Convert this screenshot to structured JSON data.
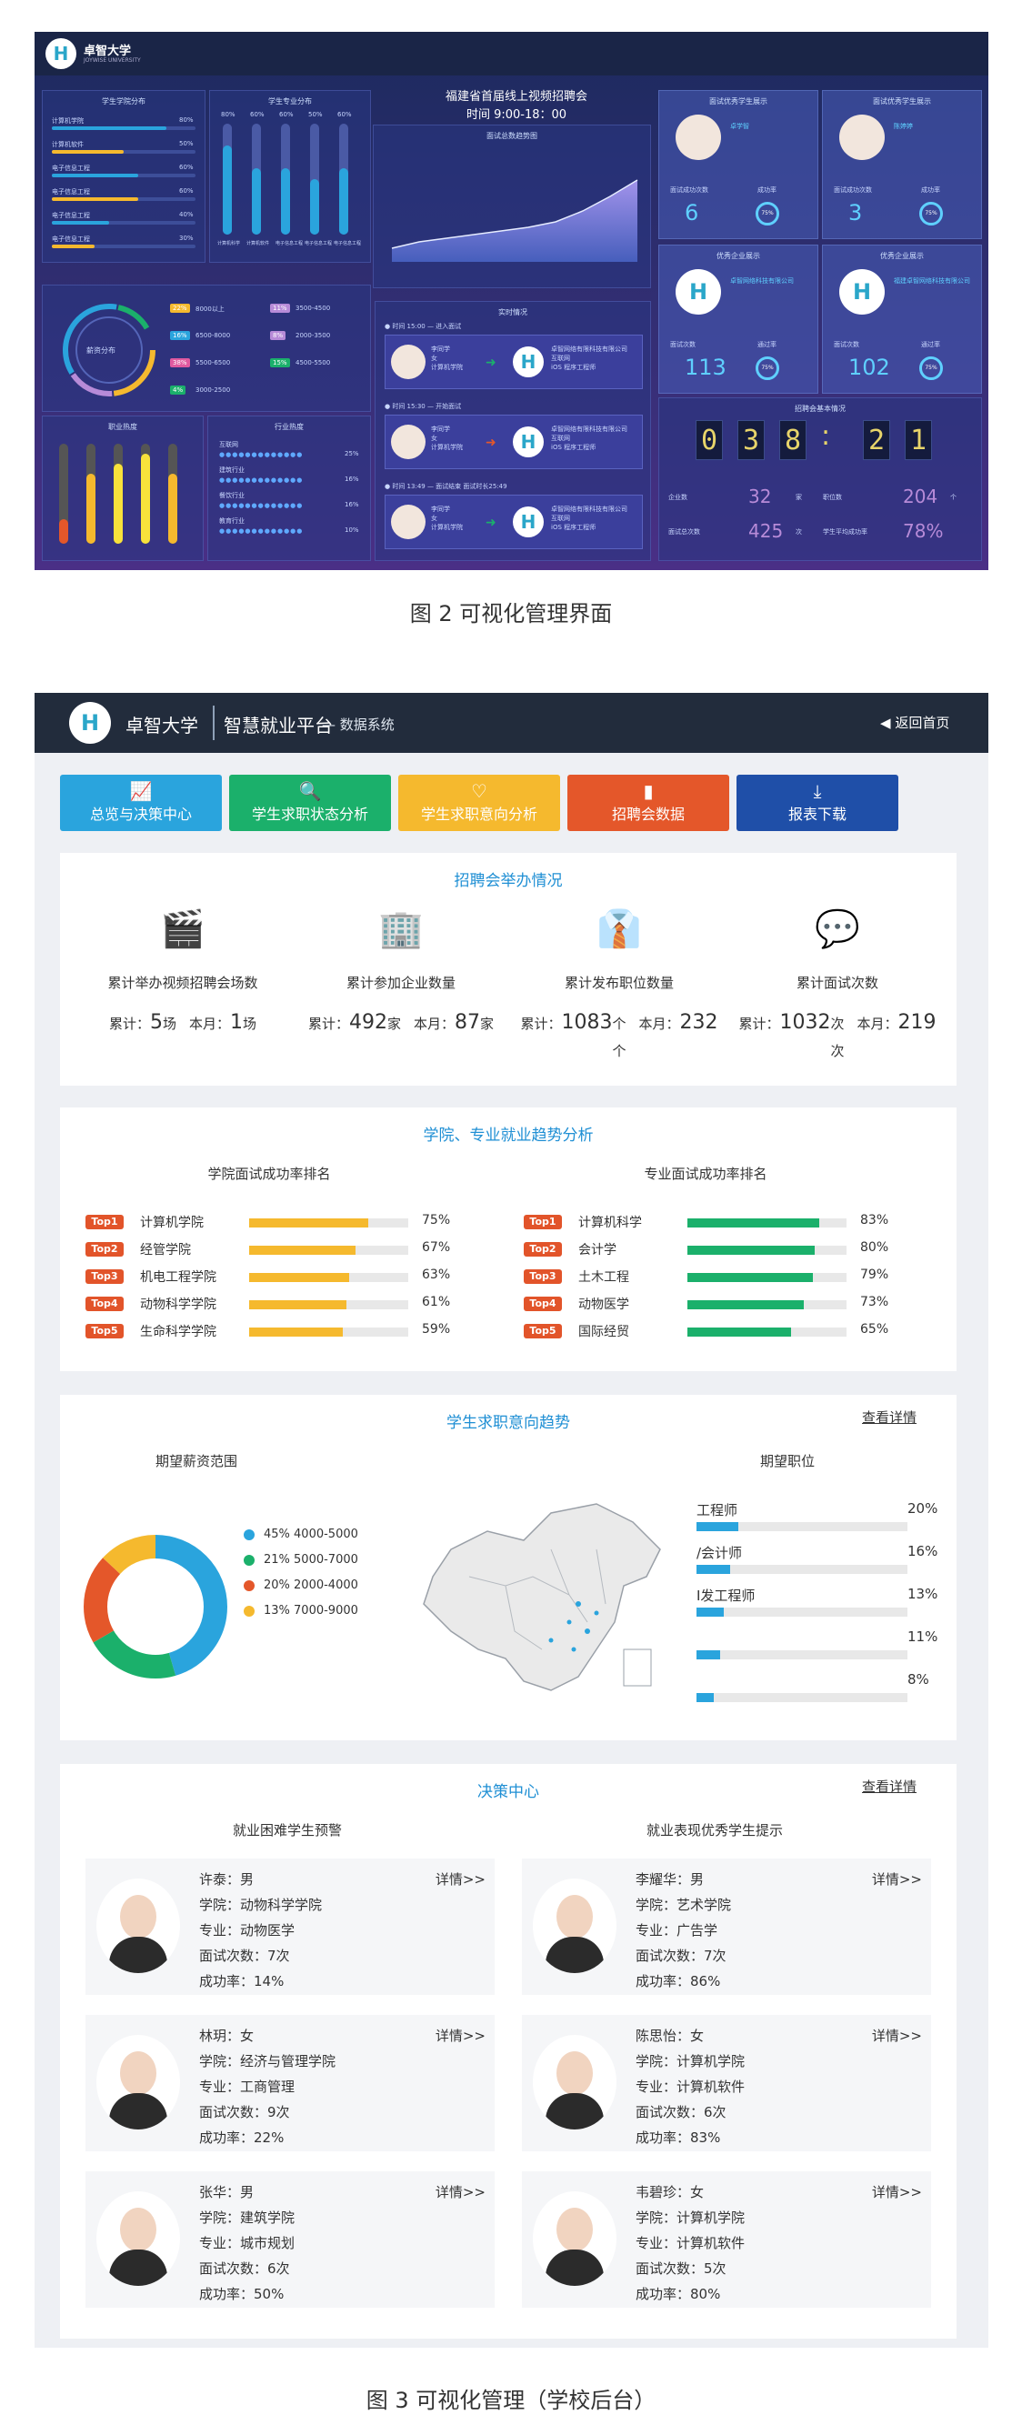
{
  "fig2": {
    "logo_text": "卓智大学",
    "logo_sub": "JOYWISE UNIVERSITY",
    "center_title": "福建省首届线上视频招聘会",
    "center_time": "时间 9:00-18：00",
    "panel_a_title": "学生学院分布",
    "panel_b_title": "学生专业分布",
    "panel_c_title": "面试总数趋势图",
    "panel_d_title": "职业热度",
    "panel_e_title": "行业热度",
    "panel_f_title": "实时情况",
    "panel_g_title": "招聘会基本情况",
    "hbars": [
      {
        "label": "计算机学院",
        "value": 80
      },
      {
        "label": "计算机软件",
        "value": 50
      },
      {
        "label": "电子信息工程",
        "value": 60
      },
      {
        "label": "电子信息工程",
        "value": 60
      },
      {
        "label": "电子信息工程",
        "value": 40
      },
      {
        "label": "电子信息工程",
        "value": 30
      }
    ],
    "vbars": [
      {
        "label": "计算机科学",
        "value": 80
      },
      {
        "label": "计算机软件",
        "value": 60
      },
      {
        "label": "电子信息工程",
        "value": 60
      },
      {
        "label": "电子信息工程",
        "value": 50
      },
      {
        "label": "电子信息工程",
        "value": 60
      }
    ],
    "donut_label": "薪资分布",
    "salary": [
      {
        "pct": "22%",
        "range": "8000以上"
      },
      {
        "pct": "11%",
        "range": "3500-4500"
      },
      {
        "pct": "16%",
        "range": "6500-8000"
      },
      {
        "pct": "8%",
        "range": "2000-3500"
      },
      {
        "pct": "38%",
        "range": "5500-6500"
      },
      {
        "pct": "15%",
        "range": "4500-5500"
      },
      {
        "pct": "4%",
        "range": "3000-2500"
      }
    ],
    "job_bars": [
      25,
      70,
      80,
      90,
      70
    ],
    "industries": [
      {
        "name": "互联网",
        "pct": "25%"
      },
      {
        "name": "建筑行业",
        "pct": "16%"
      },
      {
        "name": "餐饮行业",
        "pct": "16%"
      },
      {
        "name": "教育行业",
        "pct": "10%"
      }
    ],
    "realtime": [
      {
        "time": "● 时间 15:00 — 进入面试",
        "person": "李同学\n女\n计算机学院",
        "company": "卓智网络有限科技有限公司\n互联网\niOS 程序工程师"
      },
      {
        "time": "● 时间 15:30 — 开始面试",
        "person": "李同学\n女\n计算机学院",
        "company": "卓智网络有限科技有限公司\n互联网\niOS 程序工程师"
      },
      {
        "time": "● 时间 13:49 — 面试结束 面试时长25:49",
        "person": "李同学\n女\n计算机学院",
        "company": "卓智网络有限科技有限公司\n互联网\niOS 程序工程师"
      }
    ],
    "card_titles": [
      "面试优秀学生展示",
      "面试优秀学生展示",
      "优秀企业展示",
      "优秀企业展示"
    ],
    "card_stats": [
      {
        "a_label": "面试成功次数",
        "a_val": "6",
        "b_label": "成功率",
        "b_val": "75%"
      },
      {
        "a_label": "面试成功次数",
        "a_val": "3",
        "b_label": "成功率",
        "b_val": "75%"
      },
      {
        "a_label": "面试次数",
        "a_val": "113",
        "b_label": "通过率",
        "b_val": "75%"
      },
      {
        "a_label": "面试次数",
        "a_val": "102",
        "b_label": "通过率",
        "b_val": "75%"
      }
    ],
    "card_names": [
      "卓学智",
      "陈婷婷",
      "卓智网络科技有限公司",
      "福建卓智网络科技有限公司"
    ],
    "clock": [
      "0",
      "3",
      "8",
      ":",
      "2",
      "1"
    ],
    "basic": [
      {
        "label": "企业数",
        "value": "32",
        "unit": "家"
      },
      {
        "label": "职位数",
        "value": "204",
        "unit": "个"
      },
      {
        "label": "面试总次数",
        "value": "425",
        "unit": "次"
      },
      {
        "label": "学生平均成功率",
        "value": "78%",
        "unit": ""
      }
    ],
    "caption": "图 2  可视化管理界面"
  },
  "fig3": {
    "header": {
      "school": "卓智大学",
      "platform": "智慧就业平台",
      "sub": "— 数据系统",
      "back": "返回首页"
    },
    "tabs": [
      {
        "label": "总览与决策中心",
        "icon": "📈",
        "color": "#2aa4dd"
      },
      {
        "label": "学生求职状态分析",
        "icon": "🔍",
        "color": "#1bb06b"
      },
      {
        "label": "学生求职意向分析",
        "icon": "♡",
        "color": "#f5b92e"
      },
      {
        "label": "招聘会数据",
        "icon": "▮",
        "color": "#e4572a"
      },
      {
        "label": "报表下载",
        "icon": "⤓",
        "color": "#1f4fa8"
      }
    ],
    "fair": {
      "title": "招聘会举办情况",
      "items": [
        {
          "label": "累计举办视频招聘会场数",
          "total_pre": "累计：",
          "total": "5",
          "total_unit": "场",
          "month_pre": "本月：",
          "month": "1",
          "month_unit": "场",
          "icon": "clapper-icon"
        },
        {
          "label": "累计参加企业数量",
          "total_pre": "累计：",
          "total": "492",
          "total_unit": "家",
          "month_pre": "本月：",
          "month": "87",
          "month_unit": "家",
          "icon": "building-icon"
        },
        {
          "label": "累计发布职位数量",
          "total_pre": "累计：",
          "total": "1083",
          "total_unit": "个",
          "month_pre": "本月：",
          "month": "232",
          "month_unit": "个",
          "icon": "tie-icon"
        },
        {
          "label": "累计面试次数",
          "total_pre": "累计：",
          "total": "1032",
          "total_unit": "次",
          "month_pre": "本月：",
          "month": "219",
          "month_unit": "次",
          "icon": "chat-icon"
        }
      ]
    },
    "trend": {
      "title": "学院、专业就业趋势分析",
      "left_title": "学院面试成功率排名",
      "right_title": "专业面试成功率排名",
      "colleges": [
        {
          "tag": "Top1",
          "name": "计算机学院",
          "pct": 75
        },
        {
          "tag": "Top2",
          "name": "经管学院",
          "pct": 67
        },
        {
          "tag": "Top3",
          "name": "机电工程学院",
          "pct": 63
        },
        {
          "tag": "Top4",
          "name": "动物科学学院",
          "pct": 61
        },
        {
          "tag": "Top5",
          "name": "生命科学学院",
          "pct": 59
        }
      ],
      "majors": [
        {
          "tag": "Top1",
          "name": "计算机科学",
          "pct": 83
        },
        {
          "tag": "Top2",
          "name": "会计学",
          "pct": 80
        },
        {
          "tag": "Top3",
          "name": "土木工程",
          "pct": 79
        },
        {
          "tag": "Top4",
          "name": "动物医学",
          "pct": 73
        },
        {
          "tag": "Top5",
          "name": "国际经贸",
          "pct": 65
        }
      ]
    },
    "intent": {
      "title": "学生求职意向趋势",
      "more": "查看详情",
      "salary_title": "期望薪资范围",
      "job_title": "期望职位",
      "salary": [
        {
          "text": "45% 4000-5000",
          "v": 45,
          "color": "#2aa4dd"
        },
        {
          "text": "21% 5000-7000",
          "v": 21,
          "color": "#1bb06b"
        },
        {
          "text": "20% 2000-4000",
          "v": 20,
          "color": "#e4572a"
        },
        {
          "text": "13% 7000-9000",
          "v": 13,
          "color": "#f5b92e"
        }
      ],
      "jobs": [
        {
          "name": "工程师",
          "pct": 20
        },
        {
          "name": "/会计师",
          "pct": 16
        },
        {
          "name": "I发工程师",
          "pct": 13
        },
        {
          "name": "",
          "pct": 11
        },
        {
          "name": "",
          "pct": 8
        }
      ]
    },
    "decision": {
      "title": "决策中心",
      "more": "查看详情",
      "left_title": "就业困难学生预警",
      "right_title": "就业表现优秀学生提示",
      "detail": "详情>>",
      "left": [
        {
          "name": "许泰：男",
          "college": "学院：动物科学学院",
          "major": "专业：动物医学",
          "count": "面试次数：7次",
          "rate": "成功率：14%"
        },
        {
          "name": "林玥：女",
          "college": "学院：经济与管理学院",
          "major": "专业：工商管理",
          "count": "面试次数：9次",
          "rate": "成功率：22%"
        },
        {
          "name": "张华：男",
          "college": "学院：建筑学院",
          "major": "专业：城市规划",
          "count": "面试次数：6次",
          "rate": "成功率：50%"
        }
      ],
      "right": [
        {
          "name": "李耀华：男",
          "college": "学院：艺术学院",
          "major": "专业：广告学",
          "count": "面试次数：7次",
          "rate": "成功率：86%"
        },
        {
          "name": "陈思怡：女",
          "college": "学院：计算机学院",
          "major": "专业：计算机软件",
          "count": "面试次数：6次",
          "rate": "成功率：83%"
        },
        {
          "name": "韦碧珍：女",
          "college": "学院：计算机学院",
          "major": "专业：计算机软件",
          "count": "面试次数：5次",
          "rate": "成功率：80%"
        }
      ]
    },
    "caption": "图 3  可视化管理（学校后台）"
  }
}
